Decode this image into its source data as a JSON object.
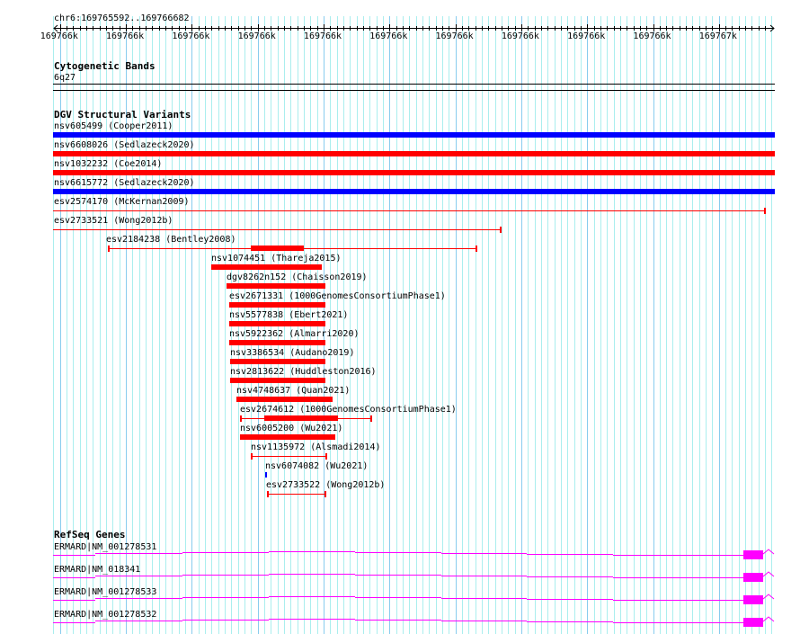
{
  "ruler": {
    "region": "chr6:169765592..169766682",
    "ticks": [
      "169766k",
      "169766k",
      "169766k",
      "169766k",
      "169766k",
      "169766k",
      "169766k",
      "169766k",
      "169766k",
      "169766k",
      "169767k"
    ]
  },
  "cytoband_track": {
    "title": "Cytogenetic Bands",
    "band": "6q27"
  },
  "dgv_track": {
    "title": "DGV Structural Variants",
    "variants": [
      {
        "id": "nsv605499 (Cooper2011)",
        "color": "#0000ff",
        "style": "bar"
      },
      {
        "id": "nsv6608026 (Sedlazeck2020)",
        "color": "#ff0000",
        "style": "bar"
      },
      {
        "id": "nsv1032232 (Coe2014)",
        "color": "#ff0000",
        "style": "bar"
      },
      {
        "id": "nsv6615772 (Sedlazeck2020)",
        "color": "#0000ff",
        "style": "bar"
      },
      {
        "id": "esv2574170 (McKernan2009)",
        "color": "#ff0000",
        "style": "line"
      },
      {
        "id": "esv2733521 (Wong2012b)",
        "color": "#ff0000",
        "style": "line"
      },
      {
        "id": "esv2184238 (Bentley2008)",
        "color": "#ff0000",
        "style": "line+bar"
      },
      {
        "id": "nsv1074451 (Thareja2015)",
        "color": "#ff0000",
        "style": "bar"
      },
      {
        "id": "dgv8262n152 (Chaisson2019)",
        "color": "#ff0000",
        "style": "bar"
      },
      {
        "id": "esv2671331 (1000GenomesConsortiumPhase1)",
        "color": "#ff0000",
        "style": "bar"
      },
      {
        "id": "nsv5577838 (Ebert2021)",
        "color": "#ff0000",
        "style": "bar"
      },
      {
        "id": "nsv5922362 (Almarri2020)",
        "color": "#ff0000",
        "style": "bar"
      },
      {
        "id": "nsv3386534 (Audano2019)",
        "color": "#ff0000",
        "style": "bar"
      },
      {
        "id": "nsv2813622 (Huddleston2016)",
        "color": "#ff0000",
        "style": "bar"
      },
      {
        "id": "nsv4748637 (Quan2021)",
        "color": "#ff0000",
        "style": "bar"
      },
      {
        "id": "esv2674612 (1000GenomesConsortiumPhase1)",
        "color": "#ff0000",
        "style": "line+bar"
      },
      {
        "id": "nsv6005200 (Wu2021)",
        "color": "#ff0000",
        "style": "bar"
      },
      {
        "id": "nsv1135972 (Alsmadi2014)",
        "color": "#ff0000",
        "style": "line"
      },
      {
        "id": "nsv6074082 (Wu2021)",
        "color": "#0000ff",
        "style": "bar"
      },
      {
        "id": "esv2733522 (Wong2012b)",
        "color": "#ff0000",
        "style": "line"
      }
    ]
  },
  "refseq_track": {
    "title": "RefSeq Genes",
    "color": "#ff00ff",
    "genes": [
      {
        "label": "ERMARD|NM_001278531"
      },
      {
        "label": "ERMARD|NM_018341"
      },
      {
        "label": "ERMARD|NM_001278533"
      },
      {
        "label": "ERMARD|NM_001278532"
      }
    ]
  },
  "colors": {
    "grid_minor": "#aaeeee",
    "grid_major": "#88ccee"
  }
}
